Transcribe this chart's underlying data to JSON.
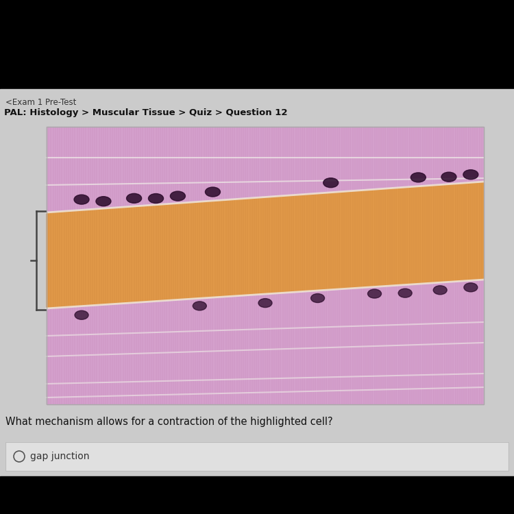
{
  "bg_top_black": "#000000",
  "bg_main": "#c8c8c8",
  "nav_text": "<Exam 1 Pre-Test",
  "breadcrumb": "PAL: Histology > Muscular Tissue > Quiz > Question 12",
  "question_text": "What mechanism allows for a contraction of the highlighted cell?",
  "answer_text": "gap junction",
  "nav_color": "#333333",
  "breadcrumb_color": "#111111",
  "question_color": "#111111",
  "answer_color": "#333333",
  "purple_light": "#d4a0cc",
  "purple_mid": "#c888be",
  "purple_dark": "#b870aa",
  "orange_color": "#e09848",
  "orange_dark": "#cc8030",
  "white_line": "#f0ece8",
  "nuclei_color": "#2a0a2a",
  "bracket_color": "#333333",
  "img_border_color": "#999999",
  "answer_box_bg": "#e8e8e8",
  "answer_box_border": "#bbbbbb",
  "radio_color": "#555555"
}
